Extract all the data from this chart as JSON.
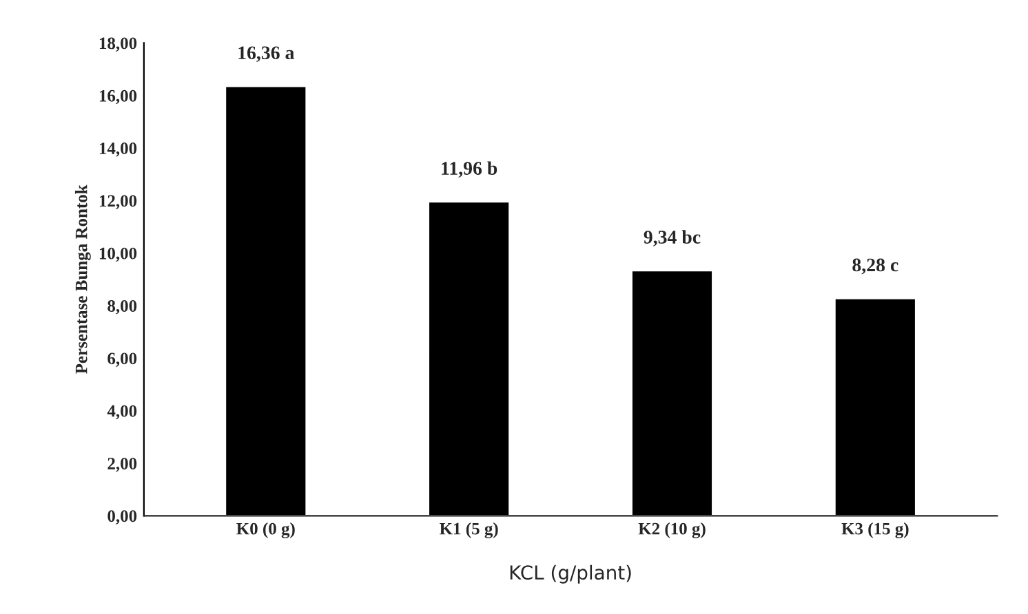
{
  "chart_data": {
    "type": "bar",
    "xlabel": "KCL (g/plant)",
    "ylabel": "Persentase Bunga Rontok",
    "categories": [
      "K0 (0 g)",
      "K1 (5 g)",
      "K2 (10 g)",
      "K3 (15 g)"
    ],
    "values": [
      16.36,
      11.96,
      9.34,
      8.28
    ],
    "color": "#000000",
    "value_labels": [
      "16,36 a",
      "11,96 b",
      "9,34 bc",
      "8,28 c"
    ],
    "ylim": [
      0,
      18
    ],
    "yticks": [
      {
        "value": 0,
        "label": "0,00"
      },
      {
        "value": 2,
        "label": "2,00"
      },
      {
        "value": 4,
        "label": "4,00"
      },
      {
        "value": 6,
        "label": "6,00"
      },
      {
        "value": 8,
        "label": "8,00"
      },
      {
        "value": 10,
        "label": "10,00"
      },
      {
        "value": 12,
        "label": "12,00"
      },
      {
        "value": 14,
        "label": "14,00"
      },
      {
        "value": 16,
        "label": "16,00"
      },
      {
        "value": 18,
        "label": "18,00"
      }
    ],
    "grid": false
  }
}
